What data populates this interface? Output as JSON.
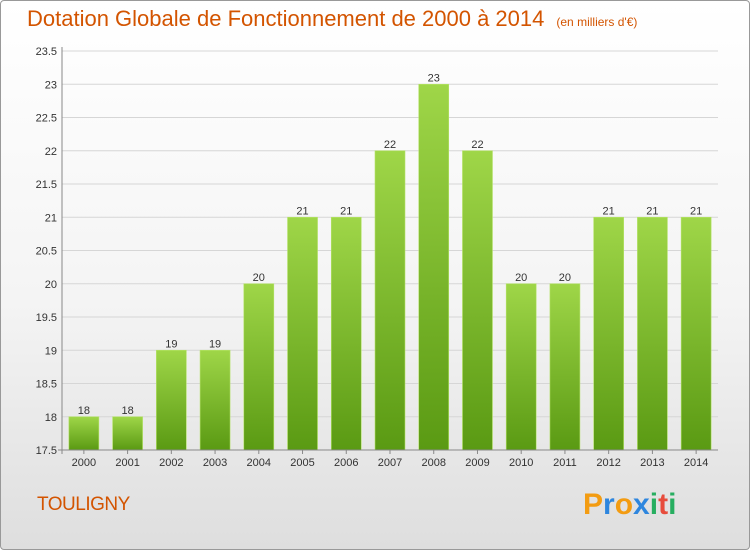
{
  "title": "Dotation Globale de Fonctionnement de 2000 à 2014",
  "unit": "(en milliers d'€)",
  "commune": "TOULIGNY",
  "logo": {
    "letters": [
      "P",
      "r",
      "o",
      "x",
      "i",
      "t",
      "i"
    ],
    "colors": [
      "#f39c12",
      "#2e86de",
      "#f39c12",
      "#2e86de",
      "#27ae60",
      "#e74c3c",
      "#27ae60"
    ]
  },
  "colors": {
    "bar_top": "#9fd648",
    "bar_bottom": "#5a9a13",
    "title": "#d35400"
  },
  "chart_data": {
    "type": "bar",
    "title": "Dotation Globale de Fonctionnement de 2000 à 2014",
    "xlabel": "",
    "ylabel": "",
    "categories": [
      "2000",
      "2001",
      "2002",
      "2003",
      "2004",
      "2005",
      "2006",
      "2007",
      "2008",
      "2009",
      "2010",
      "2011",
      "2012",
      "2013",
      "2014"
    ],
    "values": [
      18,
      18,
      19,
      19,
      20,
      21,
      21,
      22,
      23,
      22,
      20,
      20,
      21,
      21,
      21
    ],
    "ylim": [
      17.5,
      23.5
    ],
    "yticks": [
      "17.5",
      "18",
      "18.5",
      "19",
      "19.5",
      "20",
      "20.5",
      "21",
      "21.5",
      "22",
      "22.5",
      "23",
      "23.5"
    ],
    "grid": true,
    "legend": "none"
  }
}
